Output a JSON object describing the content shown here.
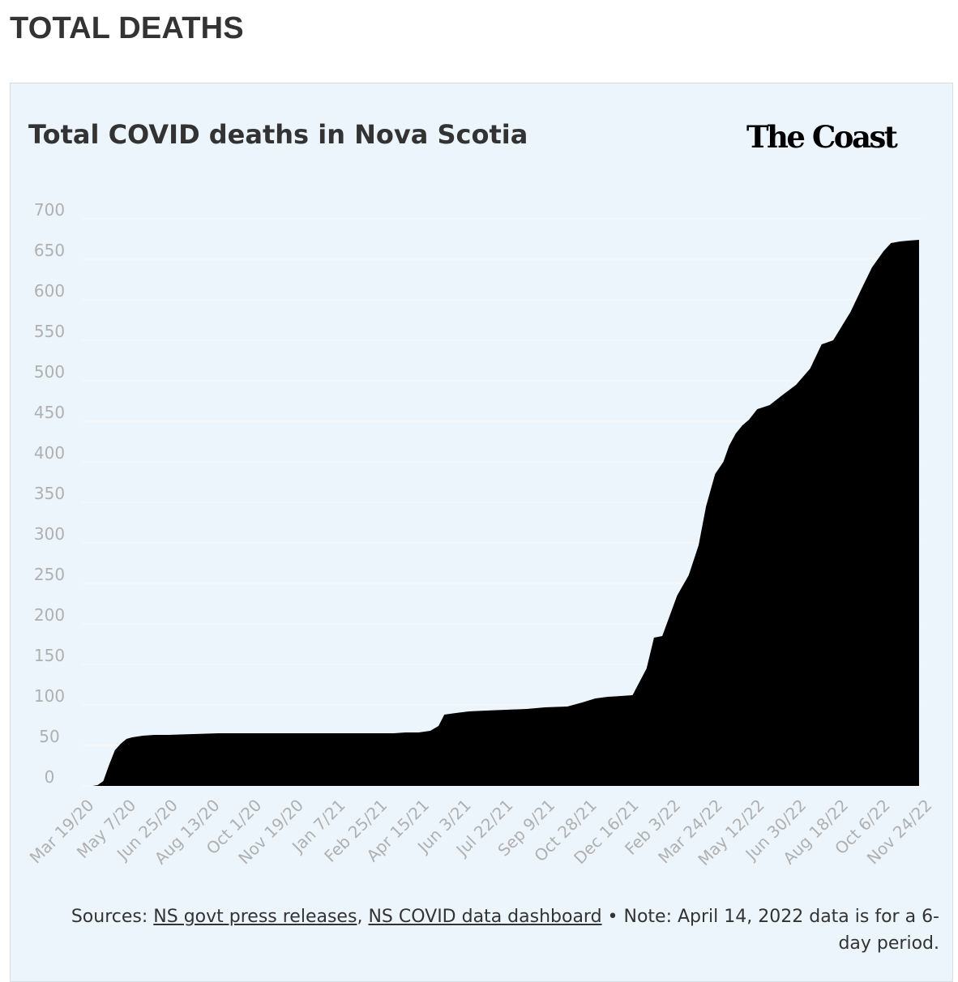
{
  "heading": "TOTAL DEATHS",
  "brand": "The Coast",
  "sources": {
    "prefix": "Sources: ",
    "link1": "NS govt press releases",
    "separator": ", ",
    "link2": "NS COVID data dashboard",
    "note": " • Note: April 14, 2022 data is for a 6-day period."
  },
  "colors": {
    "area": "#000000",
    "card_background": "#edf5fc",
    "gridline": "#f6f6f6",
    "tick_label": "#b0b0b0"
  },
  "chart_data": {
    "type": "area",
    "title": "Total COVID deaths in Nova Scotia",
    "xlabel": "",
    "ylabel": "",
    "ylim": [
      0,
      700
    ],
    "yticks": [
      0,
      50,
      100,
      150,
      200,
      250,
      300,
      350,
      400,
      450,
      500,
      550,
      600,
      650,
      700
    ],
    "xlim": [
      "2020-03-19",
      "2022-12-31"
    ],
    "x_tick_labels": [
      "Mar 19/20",
      "May 7/20",
      "Jun 25/20",
      "Aug 13/20",
      "Oct 1/20",
      "Nov 19/20",
      "Jan 7/21",
      "Feb 25/21",
      "Apr 15/21",
      "Jun 3/21",
      "Jul 22/21",
      "Sep 9/21",
      "Oct 28/21",
      "Dec 16/21",
      "Feb 3/22",
      "Mar 24/22",
      "May 12/22",
      "Jun 30/22",
      "Aug 18/22",
      "Oct 6/22",
      "Nov 24/22"
    ],
    "grid": true,
    "legend": "none",
    "series": [
      {
        "x": [
          "2020-03-19",
          "2020-04-01",
          "2020-04-07",
          "2020-04-14",
          "2020-04-21",
          "2020-04-28",
          "2020-05-05",
          "2020-05-12",
          "2020-05-19",
          "2020-06-01",
          "2020-06-15",
          "2020-07-01",
          "2020-08-01",
          "2020-09-01",
          "2020-10-01",
          "2020-11-01",
          "2020-12-01",
          "2021-01-01",
          "2021-02-01",
          "2021-03-01",
          "2021-04-01",
          "2021-04-15",
          "2021-05-01",
          "2021-05-15",
          "2021-05-25",
          "2021-06-01",
          "2021-06-15",
          "2021-07-01",
          "2021-07-22",
          "2021-08-15",
          "2021-09-09",
          "2021-10-01",
          "2021-10-28",
          "2021-11-15",
          "2021-12-01",
          "2021-12-16",
          "2022-01-01",
          "2022-01-15",
          "2022-02-01",
          "2022-02-10",
          "2022-02-20",
          "2022-03-01",
          "2022-03-10",
          "2022-03-24",
          "2022-04-05",
          "2022-04-14",
          "2022-04-25",
          "2022-05-05",
          "2022-05-12",
          "2022-05-20",
          "2022-05-28",
          "2022-06-05",
          "2022-06-15",
          "2022-06-30",
          "2022-07-15",
          "2022-08-01",
          "2022-08-18",
          "2022-09-01",
          "2022-09-15",
          "2022-10-06",
          "2022-10-20",
          "2022-11-01",
          "2022-11-15",
          "2022-11-24",
          "2022-12-05",
          "2022-12-15",
          "2022-12-28"
        ],
        "y": [
          0,
          0,
          1,
          6,
          26,
          44,
          52,
          58,
          60,
          62,
          63,
          63,
          64,
          65,
          65,
          65,
          65,
          65,
          65,
          65,
          65,
          66,
          66,
          68,
          74,
          88,
          90,
          92,
          93,
          94,
          95,
          97,
          98,
          103,
          108,
          110,
          111,
          112,
          145,
          183,
          185,
          210,
          235,
          260,
          297,
          345,
          385,
          400,
          420,
          435,
          445,
          452,
          465,
          470,
          482,
          495,
          515,
          545,
          550,
          585,
          615,
          640,
          660,
          670,
          672,
          673,
          674
        ]
      }
    ]
  }
}
